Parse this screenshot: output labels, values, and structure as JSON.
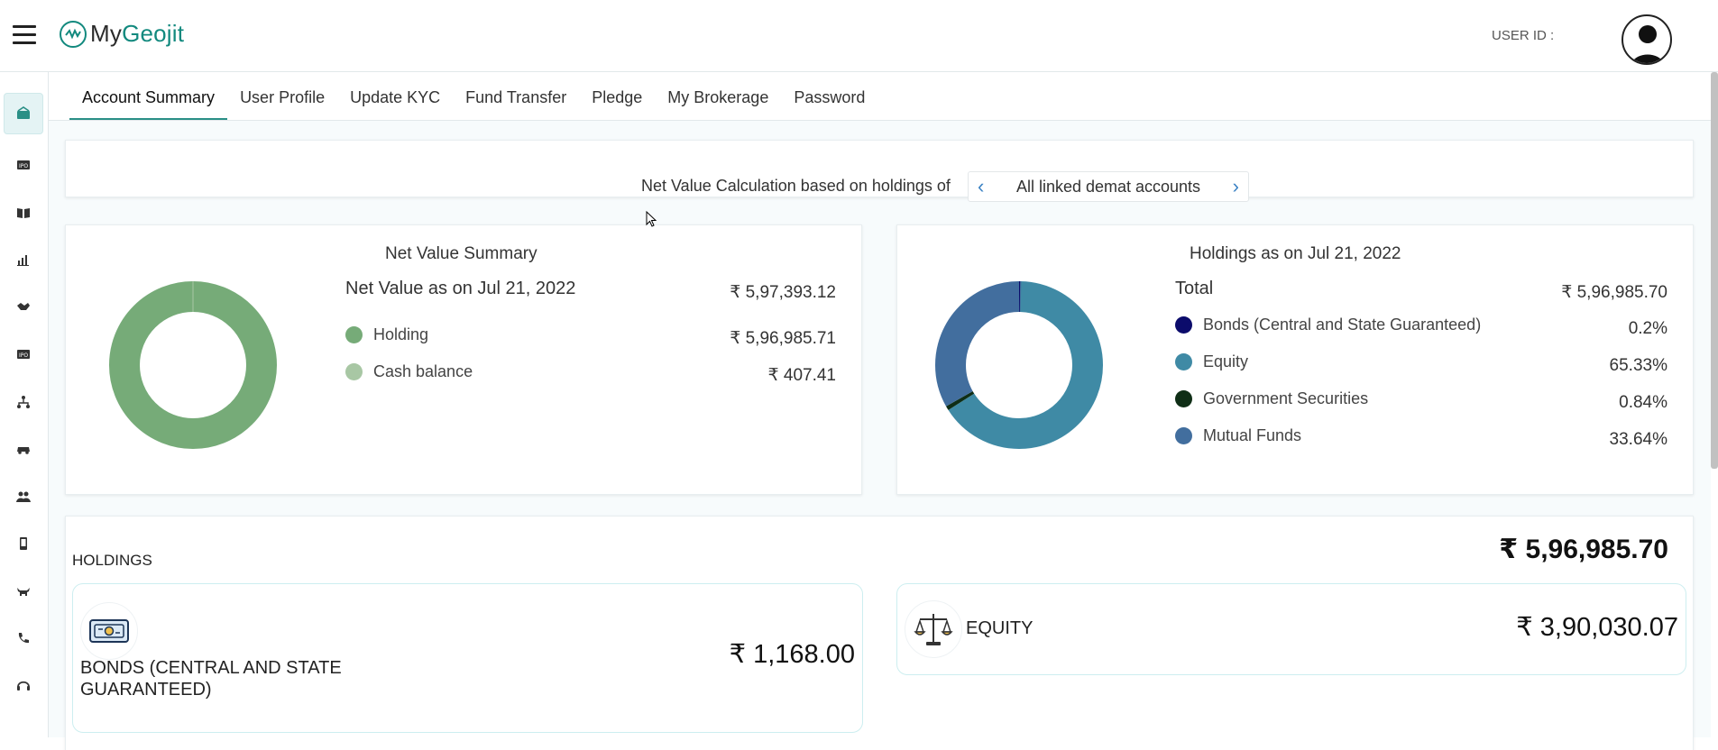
{
  "header": {
    "logo_prefix": "My",
    "logo_brand": "Geojit",
    "user_id_label": "USER ID :"
  },
  "tabs": [
    {
      "label": "Account Summary",
      "active": true
    },
    {
      "label": "User Profile"
    },
    {
      "label": "Update KYC"
    },
    {
      "label": "Fund Transfer"
    },
    {
      "label": "Pledge"
    },
    {
      "label": "My Brokerage"
    },
    {
      "label": "Password"
    }
  ],
  "netcalc": {
    "label": "Net Value Calculation based on holdings of",
    "selected": "All linked demat accounts"
  },
  "net_summary": {
    "title": "Net Value Summary",
    "subtitle": "Net Value as on Jul 21, 2022",
    "total": "₹ 5,97,393.12",
    "items": [
      {
        "label": "Holding",
        "value": "₹ 5,96,985.71",
        "color": "#76ab78"
      },
      {
        "label": "Cash balance",
        "value": "₹ 407.41",
        "color": "#a8c7a4"
      }
    ]
  },
  "holdings_summary": {
    "title": "Holdings as on Jul 21, 2022",
    "total_label": "Total",
    "total": "₹ 5,96,985.70",
    "items": [
      {
        "label": "Bonds (Central and State Guaranteed)",
        "value": "0.2%",
        "color": "#0b0b6b"
      },
      {
        "label": "Equity",
        "value": "65.33%",
        "color": "#3f8aa5"
      },
      {
        "label": "Government Securities",
        "value": "0.84%",
        "color": "#0f2e16"
      },
      {
        "label": "Mutual Funds",
        "value": "33.64%",
        "color": "#426e9e"
      }
    ]
  },
  "holdings": {
    "label": "HOLDINGS",
    "total": "₹ 5,96,985.70",
    "cards": [
      {
        "name_line1": "BONDS (CENTRAL AND STATE",
        "name_line2": "GUARANTEED)",
        "value": "₹ 1,168.00",
        "icon": "banknote-icon"
      },
      {
        "name_line1": "EQUITY",
        "value": "₹ 3,90,030.07",
        "icon": "scales-icon"
      }
    ]
  },
  "sidebar": [
    "account-icon",
    "ipo-icon",
    "book-icon",
    "chart-icon",
    "handshake-icon",
    "ipo2-icon",
    "network-icon",
    "car-icon",
    "people-icon",
    "phone-icon",
    "bull-icon",
    "call-icon",
    "headset-icon"
  ]
}
